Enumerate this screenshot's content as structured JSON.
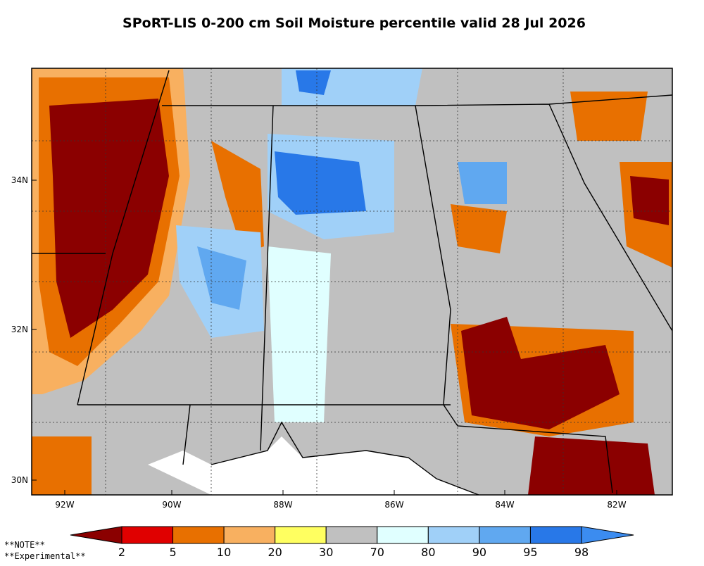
{
  "title": "SPoRT-LIS 0-200 cm Soil Moisture percentile valid 28 Jul 2026",
  "lat_labels": [
    "34N",
    "32N",
    "30N"
  ],
  "lon_labels": [
    "92W",
    "90W",
    "88W",
    "86W",
    "84W",
    "82W"
  ],
  "colorbar": {
    "colors": [
      "#8b0000",
      "#e00000",
      "#e87000",
      "#f8b060",
      "#ffff60",
      "#c0c0c0",
      "#e0ffff",
      "#a0d0f8",
      "#60a8f0",
      "#2878e8",
      "#3b8cf0"
    ],
    "labels": [
      "2",
      "5",
      "10",
      "20",
      "30",
      "70",
      "80",
      "90",
      "95",
      "98"
    ]
  },
  "notes": [
    "**NOTE**",
    "**Experimental**"
  ]
}
